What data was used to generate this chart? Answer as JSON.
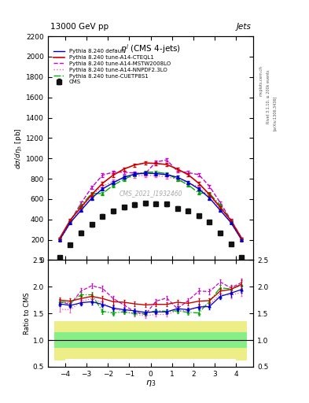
{
  "title_top": "13000 GeV pp",
  "title_right": "Jets",
  "plot_title": "$\\eta^j$ (CMS 4-jets)",
  "xlabel": "$\\eta_3$",
  "ylabel_main": "$d\\sigma/d\\eta_3$ [pb]",
  "ylabel_ratio": "Ratio to CMS",
  "cms_watermark": "CMS_2021_I1932460",
  "rivet_label": "Rivet 3.1.10, ≥ 200k events",
  "arxiv_label": "[arXiv:1306.3436]",
  "mcplots_label": "mcplots.cern.ch",
  "ylim_main": [
    0,
    2200
  ],
  "ylim_ratio": [
    0.5,
    2.5
  ],
  "yticks_main": [
    0,
    200,
    400,
    600,
    800,
    1000,
    1200,
    1400,
    1600,
    1800,
    2000,
    2200
  ],
  "yticks_ratio": [
    0.5,
    1.0,
    1.5,
    2.0,
    2.5
  ],
  "xlim": [
    -4.8,
    4.8
  ],
  "xticks": [
    -4,
    -3,
    -2,
    -1,
    0,
    1,
    2,
    3,
    4
  ],
  "eta_bins": [
    -4.5,
    -4.0,
    -3.5,
    -3.0,
    -2.5,
    -2.0,
    -1.5,
    -1.0,
    -0.5,
    0.0,
    0.5,
    1.0,
    1.5,
    2.0,
    2.5,
    3.0,
    3.5,
    4.0,
    4.5
  ],
  "eta_centers": [
    -4.25,
    -3.75,
    -3.25,
    -2.75,
    -2.25,
    -1.75,
    -1.25,
    -0.75,
    -0.25,
    0.25,
    0.75,
    1.25,
    1.75,
    2.25,
    2.75,
    3.25,
    3.75,
    4.25
  ],
  "cms_data": [
    30,
    150,
    270,
    350,
    430,
    480,
    520,
    545,
    560,
    555,
    550,
    510,
    485,
    435,
    375,
    270,
    155,
    30
  ],
  "cms_errors": [
    10,
    15,
    18,
    20,
    20,
    20,
    20,
    20,
    20,
    20,
    20,
    20,
    20,
    20,
    18,
    15,
    10,
    10
  ],
  "default_data": [
    200,
    370,
    490,
    610,
    700,
    760,
    815,
    845,
    855,
    850,
    840,
    815,
    765,
    700,
    610,
    490,
    370,
    200
  ],
  "default_errors": [
    8,
    12,
    15,
    16,
    16,
    16,
    16,
    16,
    16,
    16,
    16,
    16,
    16,
    16,
    15,
    12,
    8,
    8
  ],
  "cteql1_data": [
    215,
    395,
    520,
    645,
    755,
    835,
    895,
    935,
    955,
    950,
    940,
    895,
    840,
    755,
    645,
    520,
    390,
    215
  ],
  "cteql1_errors": [
    8,
    12,
    15,
    16,
    16,
    16,
    16,
    16,
    16,
    16,
    16,
    16,
    16,
    16,
    15,
    12,
    8,
    8
  ],
  "mstw_data": [
    210,
    385,
    560,
    715,
    835,
    865,
    865,
    855,
    850,
    965,
    985,
    875,
    860,
    840,
    725,
    565,
    395,
    215
  ],
  "mstw_errors": [
    8,
    12,
    15,
    16,
    16,
    16,
    16,
    16,
    16,
    16,
    16,
    16,
    16,
    16,
    15,
    12,
    8,
    8
  ],
  "nnpdf_data": [
    195,
    365,
    505,
    635,
    725,
    775,
    805,
    825,
    835,
    830,
    820,
    795,
    765,
    715,
    635,
    505,
    365,
    195
  ],
  "nnpdf_errors": [
    8,
    12,
    15,
    16,
    16,
    16,
    16,
    16,
    16,
    16,
    16,
    16,
    16,
    16,
    15,
    12,
    8,
    8
  ],
  "cuetp_data": [
    210,
    390,
    540,
    655,
    655,
    735,
    795,
    840,
    865,
    865,
    850,
    795,
    740,
    660,
    655,
    540,
    390,
    210
  ],
  "cuetp_errors": [
    8,
    12,
    15,
    16,
    16,
    16,
    16,
    16,
    16,
    16,
    16,
    16,
    16,
    16,
    15,
    12,
    8,
    8
  ],
  "color_cms": "#111111",
  "color_default": "#0000cc",
  "color_cteql1": "#cc0000",
  "color_mstw": "#cc00cc",
  "color_nnpdf": "#ff55bb",
  "color_cuetp": "#00aa00",
  "ratio_default": [
    1.68,
    1.65,
    1.7,
    1.72,
    1.67,
    1.6,
    1.57,
    1.55,
    1.52,
    1.53,
    1.53,
    1.59,
    1.57,
    1.62,
    1.63,
    1.82,
    1.88,
    1.95
  ],
  "ratio_cteql1": [
    1.75,
    1.73,
    1.78,
    1.82,
    1.78,
    1.72,
    1.71,
    1.68,
    1.66,
    1.67,
    1.67,
    1.71,
    1.69,
    1.73,
    1.74,
    1.92,
    1.95,
    2.05
  ],
  "ratio_mstw": [
    1.72,
    1.67,
    1.92,
    2.02,
    1.97,
    1.78,
    1.66,
    1.53,
    1.48,
    1.73,
    1.79,
    1.59,
    1.74,
    1.92,
    1.91,
    2.09,
    1.98,
    2.08
  ],
  "ratio_nnpdf": [
    1.58,
    1.57,
    1.72,
    1.78,
    1.7,
    1.59,
    1.54,
    1.48,
    1.46,
    1.48,
    1.48,
    1.55,
    1.56,
    1.62,
    1.67,
    1.86,
    1.84,
    1.9
  ],
  "ratio_cuetp": [
    1.72,
    1.7,
    1.85,
    1.85,
    1.54,
    1.51,
    1.53,
    1.5,
    1.5,
    1.55,
    1.54,
    1.55,
    1.52,
    1.51,
    1.73,
    1.98,
    1.96,
    2.03
  ],
  "ratio_err": [
    0.05,
    0.05,
    0.05,
    0.05,
    0.05,
    0.05,
    0.04,
    0.04,
    0.04,
    0.04,
    0.04,
    0.04,
    0.04,
    0.05,
    0.05,
    0.05,
    0.06,
    0.07
  ],
  "yellow_band": {
    "lo": 0.65,
    "hi": 1.35
  },
  "green_band": {
    "lo": 0.85,
    "hi": 1.15
  },
  "yellow_lo_by_bin": [
    0.62,
    0.65,
    0.65,
    0.65,
    0.65,
    0.65,
    0.65,
    0.65,
    0.65,
    0.65,
    0.65,
    0.65,
    0.65,
    0.65,
    0.65,
    0.65,
    0.65,
    0.62
  ],
  "yellow_hi_by_bin": [
    1.35,
    1.35,
    1.35,
    1.35,
    1.35,
    1.35,
    1.35,
    1.35,
    1.35,
    1.35,
    1.35,
    1.35,
    1.35,
    1.35,
    1.35,
    1.35,
    1.35,
    1.35
  ],
  "green_lo_by_bin": [
    0.85,
    0.85,
    0.85,
    0.85,
    0.85,
    0.85,
    0.85,
    0.85,
    0.85,
    0.85,
    0.85,
    0.85,
    0.85,
    0.85,
    0.85,
    0.85,
    0.85,
    0.85
  ],
  "green_hi_by_bin": [
    1.15,
    1.15,
    1.15,
    1.15,
    1.15,
    1.15,
    1.15,
    1.15,
    1.15,
    1.15,
    1.15,
    1.15,
    1.15,
    1.15,
    1.15,
    1.15,
    1.15,
    1.15
  ]
}
